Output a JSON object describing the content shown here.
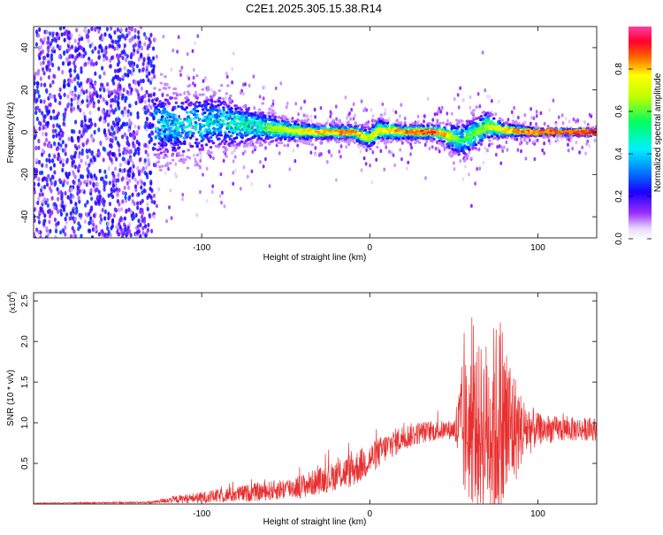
{
  "title": "C2E1.2025.305.15.38.R14",
  "chart_data": [
    {
      "type": "heatmap",
      "title": "C2E1.2025.305.15.38.R14",
      "xlabel": "Height of straight line (km)",
      "ylabel": "Frequency (Hz)",
      "xlim": [
        -200,
        135
      ],
      "ylim": [
        -50,
        50
      ],
      "x_ticks": [
        -100,
        0,
        100
      ],
      "y_ticks": [
        -40,
        -20,
        0,
        20,
        40
      ],
      "colorbar": {
        "label": "Normalized spectral amplitude",
        "range": [
          0,
          1
        ],
        "ticks": [
          0.0,
          0.2,
          0.4,
          0.6,
          0.8
        ]
      },
      "ridge": {
        "description_points_x": [
          -130,
          -110,
          -90,
          -70,
          -50,
          -30,
          -10,
          0,
          5,
          20,
          40,
          55,
          70,
          80,
          100,
          120,
          135
        ],
        "center_freq": [
          4,
          3,
          5,
          3,
          1,
          0,
          0,
          -3,
          1,
          0,
          0,
          -4,
          3,
          1,
          0,
          0,
          0
        ],
        "spread": [
          10,
          9,
          8,
          5,
          3,
          2,
          2,
          3,
          3,
          2,
          2,
          5,
          4,
          2,
          1,
          1,
          1
        ],
        "peak_amplitude": [
          0.45,
          0.5,
          0.5,
          0.6,
          0.75,
          0.85,
          0.9,
          0.75,
          0.8,
          0.9,
          0.95,
          0.6,
          0.7,
          0.85,
          0.95,
          0.95,
          0.95
        ]
      }
    },
    {
      "type": "line",
      "xlabel": "Height of straight line (km)",
      "ylabel": "SNR (10 * v/v)",
      "y_multiplier": "(x10^4)",
      "xlim": [
        -200,
        135
      ],
      "ylim": [
        0,
        2.6
      ],
      "x_ticks": [
        -100,
        0,
        100
      ],
      "y_ticks": [
        0.5,
        1.0,
        1.5,
        2.0,
        2.5
      ],
      "color": "#e83030",
      "envelope": {
        "x": [
          -200,
          -130,
          -120,
          -100,
          -80,
          -60,
          -40,
          -20,
          -10,
          0,
          10,
          20,
          30,
          40,
          50,
          55,
          60,
          70,
          78,
          85,
          90,
          100,
          110,
          120,
          135
        ],
        "base": [
          0.01,
          0.02,
          0.05,
          0.08,
          0.12,
          0.16,
          0.22,
          0.35,
          0.42,
          0.55,
          0.7,
          0.82,
          0.88,
          0.9,
          0.92,
          0.9,
          0.92,
          0.95,
          0.95,
          0.93,
          0.92,
          0.92,
          0.92,
          0.92,
          0.92
        ],
        "noise": [
          0.005,
          0.01,
          0.04,
          0.07,
          0.1,
          0.12,
          0.15,
          0.18,
          0.22,
          0.2,
          0.18,
          0.16,
          0.14,
          0.12,
          0.12,
          0.85,
          0.95,
          1.1,
          1.45,
          0.8,
          0.45,
          0.2,
          0.16,
          0.15,
          0.14
        ]
      }
    }
  ]
}
